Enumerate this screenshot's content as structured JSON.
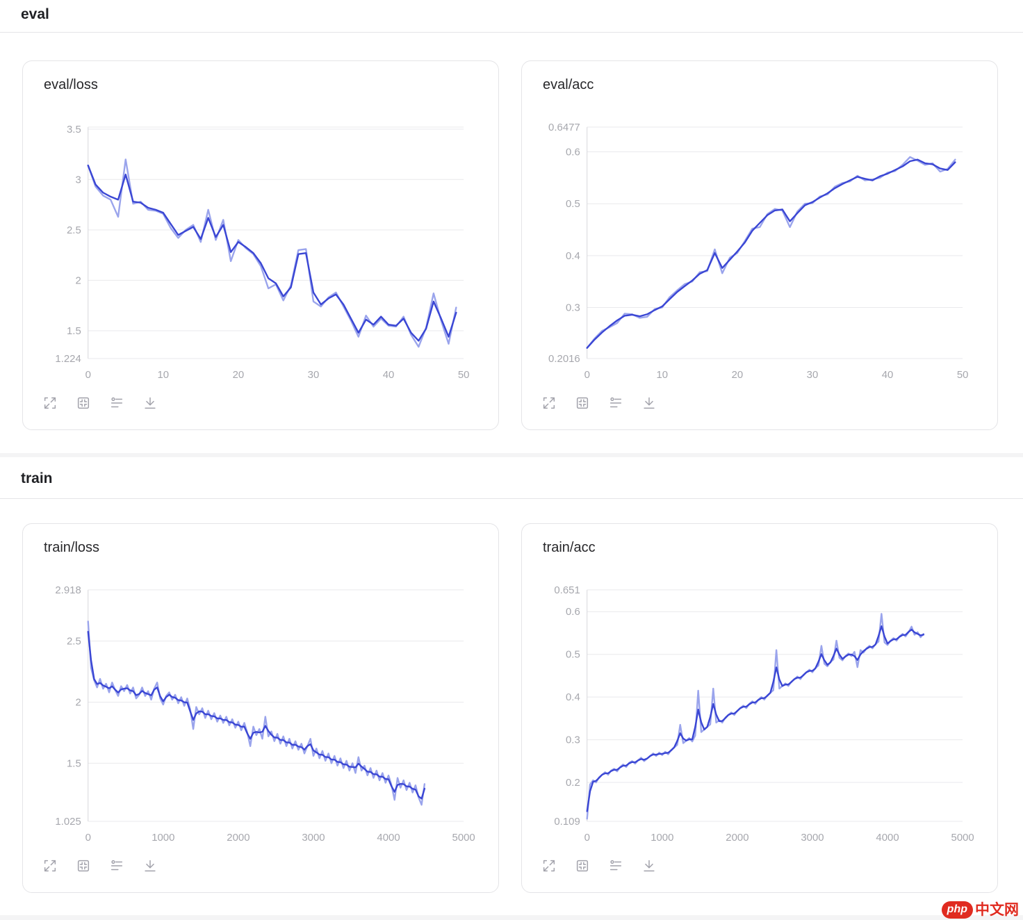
{
  "colors": {
    "raw": "#9aa4ec",
    "smoothed": "#3a46d4",
    "grid": "#e9e9ec",
    "axis": "#d6d6db",
    "tick_text": "#a6a7ad",
    "title_text": "#27272a",
    "section_text": "#1f2024",
    "icon": "#a1a1aa",
    "watermark_red": "#e02b20"
  },
  "sections": [
    {
      "title": "eval",
      "chart_indices": [
        0,
        1
      ]
    },
    {
      "title": "train",
      "chart_indices": [
        2,
        3
      ]
    }
  ],
  "toolbar": {
    "icons": [
      "fullscreen-icon",
      "fit-view-icon",
      "smoothing-icon",
      "download-icon"
    ]
  },
  "watermark": {
    "badge_label": "php",
    "site_name": "中文网"
  },
  "chart_data": [
    {
      "type": "line",
      "title": "eval/loss",
      "x": {
        "min": 0,
        "max": 50,
        "ticks": [
          0,
          10,
          20,
          30,
          40,
          50
        ],
        "x0": 0,
        "dx": 1
      },
      "y": {
        "min": 1.224,
        "max": 3.52,
        "ticks": [
          1.224,
          1.5,
          2,
          2.5,
          3,
          3.5
        ],
        "tick_labels": [
          "1.224",
          "1.5",
          "2",
          "2.5",
          "3",
          "3.5"
        ]
      },
      "legend": "none",
      "series": [
        {
          "name": "raw",
          "values": [
            3.14,
            2.93,
            2.84,
            2.8,
            2.63,
            3.2,
            2.76,
            2.78,
            2.7,
            2.69,
            2.66,
            2.52,
            2.42,
            2.5,
            2.55,
            2.38,
            2.7,
            2.4,
            2.6,
            2.19,
            2.4,
            2.32,
            2.26,
            2.14,
            1.92,
            1.96,
            1.8,
            1.95,
            2.3,
            2.31,
            1.79,
            1.74,
            1.83,
            1.88,
            1.74,
            1.6,
            1.44,
            1.65,
            1.54,
            1.62,
            1.55,
            1.54,
            1.64,
            1.46,
            1.34,
            1.53,
            1.87,
            1.6,
            1.37,
            1.73
          ]
        },
        {
          "name": "smoothed",
          "values": [
            3.14,
            2.95,
            2.87,
            2.83,
            2.8,
            3.05,
            2.78,
            2.77,
            2.72,
            2.7,
            2.67,
            2.56,
            2.45,
            2.49,
            2.53,
            2.41,
            2.62,
            2.43,
            2.55,
            2.28,
            2.38,
            2.33,
            2.27,
            2.17,
            2.02,
            1.97,
            1.84,
            1.93,
            2.26,
            2.27,
            1.88,
            1.76,
            1.82,
            1.86,
            1.76,
            1.62,
            1.48,
            1.61,
            1.56,
            1.64,
            1.56,
            1.55,
            1.62,
            1.48,
            1.4,
            1.52,
            1.79,
            1.62,
            1.44,
            1.68
          ]
        }
      ]
    },
    {
      "type": "line",
      "title": "eval/acc",
      "x": {
        "min": 0,
        "max": 50,
        "ticks": [
          0,
          10,
          20,
          30,
          40,
          50
        ],
        "x0": 0,
        "dx": 1
      },
      "y": {
        "min": 0.2016,
        "max": 0.6477,
        "ticks": [
          0.2016,
          0.3,
          0.4,
          0.5,
          0.6,
          0.6477
        ],
        "tick_labels": [
          "0.2016",
          "0.3",
          "0.4",
          "0.5",
          "0.6",
          "0.6477"
        ]
      },
      "legend": "none",
      "series": [
        {
          "name": "raw",
          "values": [
            0.222,
            0.24,
            0.255,
            0.262,
            0.27,
            0.288,
            0.287,
            0.28,
            0.282,
            0.297,
            0.3,
            0.32,
            0.333,
            0.345,
            0.35,
            0.368,
            0.37,
            0.412,
            0.366,
            0.396,
            0.405,
            0.428,
            0.452,
            0.455,
            0.48,
            0.49,
            0.487,
            0.455,
            0.485,
            0.5,
            0.501,
            0.514,
            0.518,
            0.533,
            0.54,
            0.543,
            0.554,
            0.545,
            0.547,
            0.55,
            0.56,
            0.563,
            0.575,
            0.59,
            0.583,
            0.575,
            0.578,
            0.562,
            0.567,
            0.585
          ]
        },
        {
          "name": "smoothed",
          "values": [
            0.222,
            0.238,
            0.252,
            0.264,
            0.275,
            0.284,
            0.286,
            0.283,
            0.287,
            0.295,
            0.302,
            0.316,
            0.33,
            0.341,
            0.352,
            0.365,
            0.372,
            0.405,
            0.376,
            0.392,
            0.408,
            0.425,
            0.448,
            0.463,
            0.478,
            0.487,
            0.489,
            0.466,
            0.482,
            0.497,
            0.503,
            0.512,
            0.52,
            0.53,
            0.538,
            0.545,
            0.552,
            0.548,
            0.545,
            0.553,
            0.558,
            0.565,
            0.572,
            0.582,
            0.585,
            0.578,
            0.576,
            0.568,
            0.565,
            0.58
          ]
        }
      ]
    },
    {
      "type": "line",
      "title": "train/loss",
      "x": {
        "min": 0,
        "max": 5000,
        "ticks": [
          0,
          1000,
          2000,
          3000,
          4000,
          5000
        ],
        "x0": 0,
        "dx": 40
      },
      "y": {
        "min": 1.025,
        "max": 2.918,
        "ticks": [
          1.025,
          1.5,
          2,
          2.5,
          2.918
        ],
        "tick_labels": [
          "1.025",
          "1.5",
          "2",
          "2.5",
          "2.918"
        ]
      },
      "legend": "none",
      "series": [
        {
          "name": "raw",
          "values": [
            2.66,
            2.28,
            2.18,
            2.12,
            2.19,
            2.11,
            2.15,
            2.08,
            2.16,
            2.1,
            2.05,
            2.13,
            2.09,
            2.14,
            2.07,
            2.12,
            2.03,
            2.06,
            2.12,
            2.05,
            2.09,
            2.02,
            2.11,
            2.16,
            2.03,
            1.98,
            2.05,
            2.08,
            2.02,
            2.06,
            1.99,
            2.04,
            1.97,
            2.03,
            1.94,
            1.78,
            1.96,
            1.9,
            1.95,
            1.87,
            1.93,
            1.86,
            1.91,
            1.84,
            1.89,
            1.83,
            1.88,
            1.81,
            1.86,
            1.79,
            1.84,
            1.77,
            1.83,
            1.75,
            1.64,
            1.8,
            1.73,
            1.78,
            1.7,
            1.88,
            1.72,
            1.76,
            1.68,
            1.74,
            1.66,
            1.72,
            1.64,
            1.7,
            1.62,
            1.68,
            1.61,
            1.66,
            1.58,
            1.64,
            1.7,
            1.56,
            1.62,
            1.54,
            1.6,
            1.52,
            1.58,
            1.5,
            1.56,
            1.48,
            1.54,
            1.46,
            1.52,
            1.44,
            1.5,
            1.42,
            1.55,
            1.44,
            1.48,
            1.4,
            1.46,
            1.38,
            1.44,
            1.36,
            1.42,
            1.34,
            1.4,
            1.32,
            1.2,
            1.38,
            1.3,
            1.36,
            1.28,
            1.34,
            1.26,
            1.32,
            1.22,
            1.16,
            1.33
          ]
        },
        {
          "name": "smoothed",
          "derive": "wma"
        }
      ]
    },
    {
      "type": "line",
      "title": "train/acc",
      "x": {
        "min": 0,
        "max": 5000,
        "ticks": [
          0,
          1000,
          2000,
          3000,
          4000,
          5000
        ],
        "x0": 0,
        "dx": 40
      },
      "y": {
        "min": 0.109,
        "max": 0.651,
        "ticks": [
          0.109,
          0.2,
          0.3,
          0.4,
          0.5,
          0.6,
          0.651
        ],
        "tick_labels": [
          "0.109",
          "0.2",
          "0.3",
          "0.4",
          "0.5",
          "0.6",
          "0.651"
        ]
      },
      "legend": "none",
      "series": [
        {
          "name": "raw",
          "values": [
            0.115,
            0.195,
            0.205,
            0.2,
            0.212,
            0.218,
            0.224,
            0.218,
            0.228,
            0.232,
            0.226,
            0.236,
            0.242,
            0.236,
            0.246,
            0.25,
            0.244,
            0.252,
            0.258,
            0.25,
            0.256,
            0.262,
            0.268,
            0.262,
            0.27,
            0.264,
            0.272,
            0.266,
            0.276,
            0.282,
            0.288,
            0.335,
            0.292,
            0.298,
            0.304,
            0.296,
            0.31,
            0.415,
            0.318,
            0.324,
            0.33,
            0.336,
            0.42,
            0.34,
            0.346,
            0.34,
            0.352,
            0.358,
            0.364,
            0.358,
            0.368,
            0.374,
            0.38,
            0.374,
            0.384,
            0.39,
            0.384,
            0.394,
            0.4,
            0.394,
            0.404,
            0.41,
            0.416,
            0.51,
            0.42,
            0.426,
            0.432,
            0.426,
            0.436,
            0.442,
            0.448,
            0.442,
            0.452,
            0.458,
            0.464,
            0.458,
            0.468,
            0.474,
            0.52,
            0.478,
            0.472,
            0.482,
            0.488,
            0.532,
            0.492,
            0.486,
            0.496,
            0.502,
            0.496,
            0.506,
            0.47,
            0.51,
            0.504,
            0.514,
            0.52,
            0.514,
            0.524,
            0.53,
            0.595,
            0.528,
            0.522,
            0.532,
            0.538,
            0.532,
            0.542,
            0.548,
            0.542,
            0.552,
            0.565,
            0.546,
            0.552,
            0.54,
            0.548
          ]
        },
        {
          "name": "smoothed",
          "derive": "wma"
        }
      ]
    }
  ]
}
